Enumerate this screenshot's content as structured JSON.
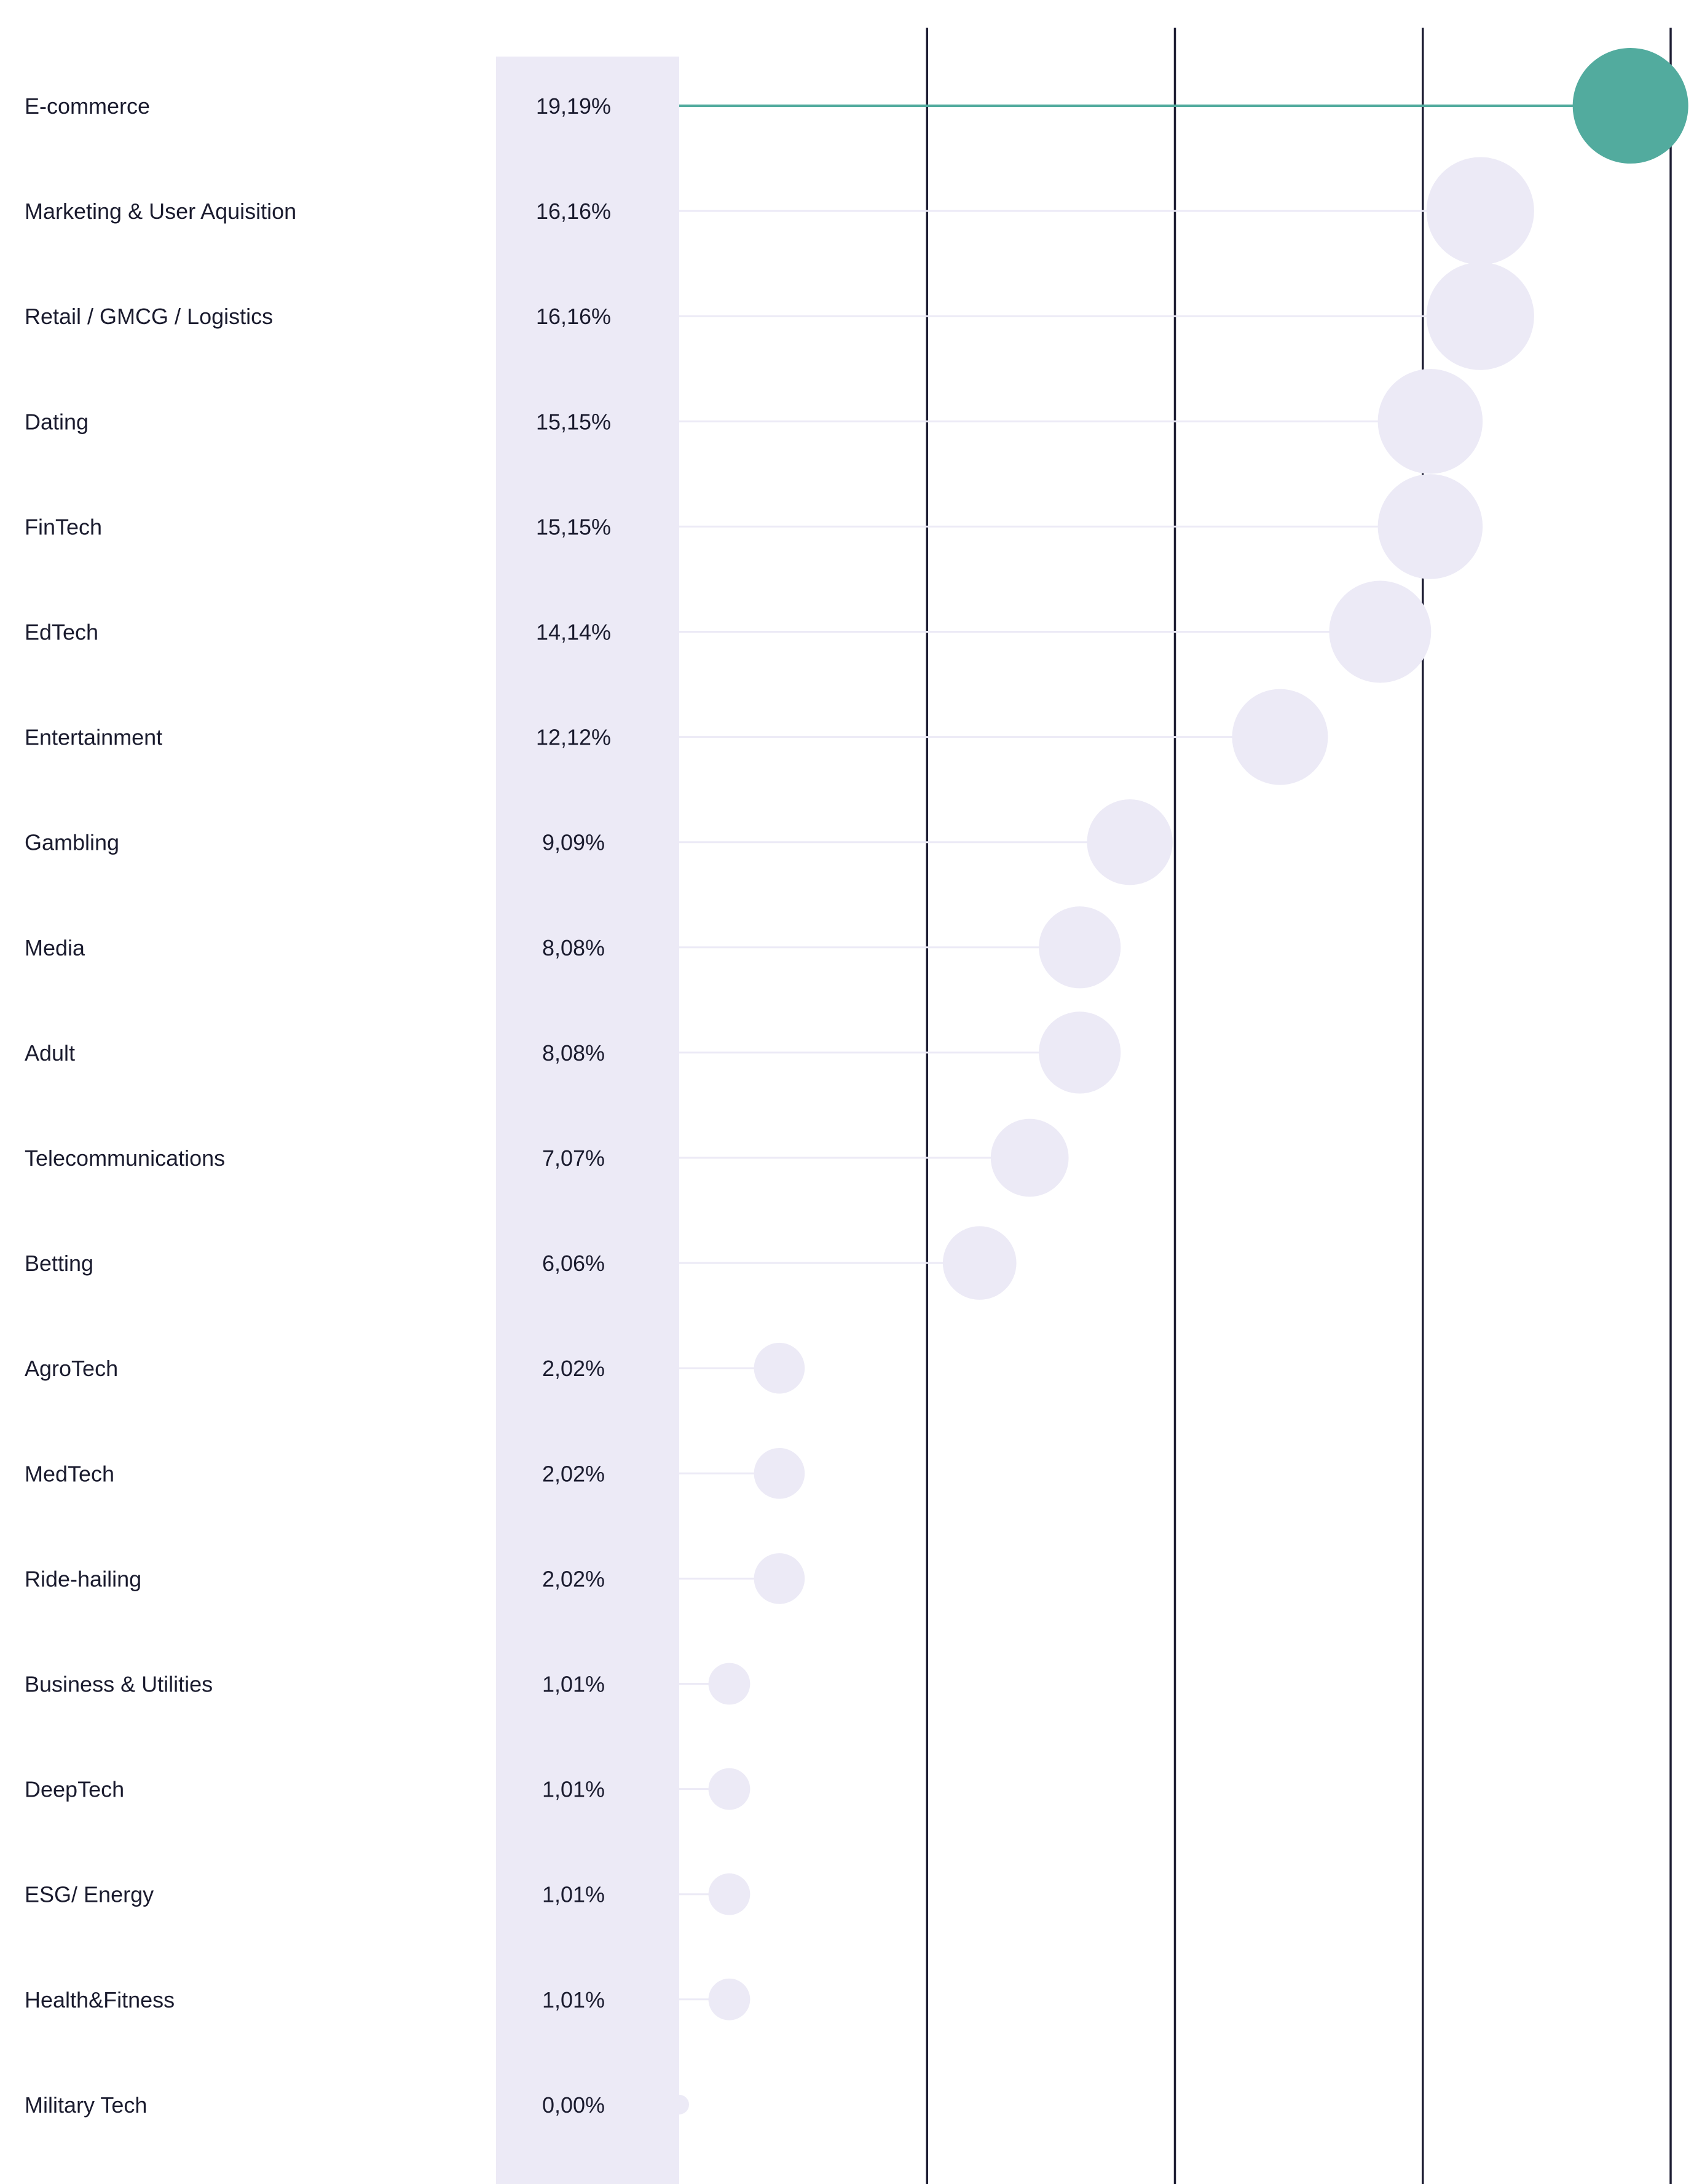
{
  "chart_data": {
    "type": "lollipop",
    "categories": [
      "E-commerce",
      "Marketing & User Aquisition",
      "Retail / GMCG / Logistics",
      "Dating",
      "FinTech",
      "EdTech",
      "Entertainment",
      "Gambling",
      "Media",
      "Adult",
      "Telecommunications",
      "Betting",
      "AgroTech",
      "MedTech",
      "Ride-hailing",
      "Business & Utilities",
      "DeepTech",
      "ESG/ Energy",
      "Health&Fitness",
      "Military Tech"
    ],
    "values": [
      19.19,
      16.16,
      16.16,
      15.15,
      15.15,
      14.14,
      12.12,
      9.09,
      8.08,
      8.08,
      7.07,
      6.06,
      2.02,
      2.02,
      2.02,
      1.01,
      1.01,
      1.01,
      1.01,
      0.0
    ],
    "value_labels": [
      "19,19%",
      "16,16%",
      "16,16%",
      "15,15%",
      "15,15%",
      "14,14%",
      "12,12%",
      "9,09%",
      "8,08%",
      "8,08%",
      "7,07%",
      "6,06%",
      "2,02%",
      "2,02%",
      "2,02%",
      "1,01%",
      "1,01%",
      "1,01%",
      "1,01%",
      "0,00%"
    ],
    "xlim": [
      0,
      20
    ],
    "gridlines": [
      5,
      10,
      15,
      20
    ],
    "grid": true,
    "highlight_index": 0,
    "colors": {
      "highlight": "#52AB9E",
      "dot": "#ECEAF6",
      "value_column_bg": "#ECEAF6",
      "connector": "#ECEAF6",
      "gridline": "#1D1D33",
      "text": "#1A1B2E"
    }
  }
}
